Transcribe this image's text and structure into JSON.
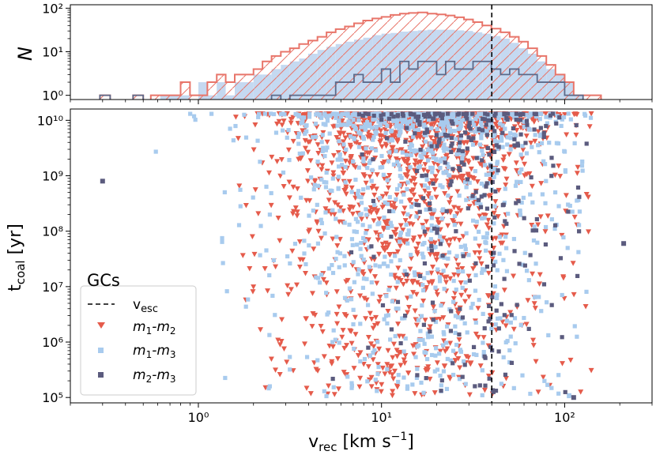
{
  "chart_data": [
    {
      "type": "histogram",
      "panel": "top",
      "ylabel": "N",
      "xscale": "log",
      "yscale": "log",
      "xlim": [
        0.2,
        300
      ],
      "ylim": [
        0.8,
        120
      ],
      "y_ticks": [
        {
          "value": 1,
          "label": "10⁰"
        },
        {
          "value": 10,
          "label": "10¹"
        },
        {
          "value": 100,
          "label": "10²"
        }
      ],
      "series": [
        {
          "name": "m1-m2",
          "style": "hatched outline",
          "color": "#e8756a",
          "bins": [
            [
              0.29,
              0.33,
              1
            ],
            [
              0.44,
              0.5,
              1
            ],
            [
              0.55,
              0.62,
              1
            ],
            [
              0.62,
              0.7,
              1
            ],
            [
              0.7,
              0.8,
              1
            ],
            [
              0.8,
              0.9,
              2
            ],
            [
              0.9,
              1.0,
              1
            ],
            [
              1.0,
              1.12,
              1
            ],
            [
              1.12,
              1.26,
              2
            ],
            [
              1.26,
              1.41,
              3
            ],
            [
              1.41,
              1.58,
              2
            ],
            [
              1.58,
              1.78,
              3
            ],
            [
              1.78,
              2.0,
              3
            ],
            [
              2.0,
              2.24,
              4
            ],
            [
              2.24,
              2.51,
              6
            ],
            [
              2.51,
              2.82,
              8
            ],
            [
              2.82,
              3.16,
              10
            ],
            [
              3.16,
              3.55,
              12
            ],
            [
              3.55,
              3.98,
              15
            ],
            [
              3.98,
              4.47,
              18
            ],
            [
              4.47,
              5.01,
              22
            ],
            [
              5.01,
              5.62,
              28
            ],
            [
              5.62,
              6.31,
              33
            ],
            [
              6.31,
              7.08,
              38
            ],
            [
              7.08,
              7.94,
              45
            ],
            [
              7.94,
              8.91,
              52
            ],
            [
              8.91,
              10.0,
              58
            ],
            [
              10.0,
              11.2,
              63
            ],
            [
              11.2,
              12.6,
              70
            ],
            [
              12.6,
              14.1,
              75
            ],
            [
              14.1,
              15.8,
              78
            ],
            [
              15.8,
              17.8,
              80
            ],
            [
              17.8,
              20.0,
              75
            ],
            [
              20.0,
              22.4,
              72
            ],
            [
              22.4,
              25.1,
              68
            ],
            [
              25.1,
              28.2,
              62
            ],
            [
              28.2,
              31.6,
              55
            ],
            [
              31.6,
              35.5,
              48
            ],
            [
              35.5,
              39.8,
              40
            ],
            [
              39.8,
              44.7,
              34
            ],
            [
              44.7,
              50.1,
              28
            ],
            [
              50.1,
              56.2,
              22
            ],
            [
              56.2,
              63.1,
              17
            ],
            [
              63.1,
              70.8,
              12
            ],
            [
              70.8,
              79.4,
              8
            ],
            [
              79.4,
              89.1,
              5
            ],
            [
              89.1,
              100,
              3
            ],
            [
              100,
              112,
              2
            ],
            [
              112,
              126,
              1
            ],
            [
              126,
              141,
              1
            ],
            [
              141,
              158,
              1
            ]
          ]
        },
        {
          "name": "m1-m3",
          "style": "filled",
          "color": "#c5d9f1",
          "bins": [
            [
              0.62,
              0.7,
              1
            ],
            [
              0.7,
              0.8,
              1
            ],
            [
              0.8,
              0.9,
              1
            ],
            [
              1.0,
              1.12,
              2
            ],
            [
              1.12,
              1.26,
              1
            ],
            [
              1.26,
              1.41,
              2
            ],
            [
              1.41,
              1.58,
              1
            ],
            [
              1.58,
              1.78,
              2
            ],
            [
              1.78,
              2.0,
              2
            ],
            [
              2.0,
              2.24,
              3
            ],
            [
              2.24,
              2.51,
              3
            ],
            [
              2.51,
              2.82,
              4
            ],
            [
              2.82,
              3.16,
              5
            ],
            [
              3.16,
              3.55,
              6
            ],
            [
              3.55,
              3.98,
              7
            ],
            [
              3.98,
              4.47,
              9
            ],
            [
              4.47,
              5.01,
              11
            ],
            [
              5.01,
              5.62,
              13
            ],
            [
              5.62,
              6.31,
              15
            ],
            [
              6.31,
              7.08,
              17
            ],
            [
              7.08,
              7.94,
              19
            ],
            [
              7.94,
              8.91,
              21
            ],
            [
              8.91,
              10.0,
              24
            ],
            [
              10.0,
              11.2,
              26
            ],
            [
              11.2,
              12.6,
              27
            ],
            [
              12.6,
              14.1,
              29
            ],
            [
              14.1,
              15.8,
              30
            ],
            [
              15.8,
              17.8,
              31
            ],
            [
              17.8,
              20.0,
              32
            ],
            [
              20.0,
              22.4,
              32
            ],
            [
              22.4,
              25.1,
              32
            ],
            [
              25.1,
              28.2,
              31
            ],
            [
              28.2,
              31.6,
              30
            ],
            [
              31.6,
              35.5,
              28
            ],
            [
              35.5,
              39.8,
              26
            ],
            [
              39.8,
              44.7,
              23
            ],
            [
              44.7,
              50.1,
              20
            ],
            [
              50.1,
              56.2,
              16
            ],
            [
              56.2,
              63.1,
              12
            ],
            [
              63.1,
              70.8,
              9
            ],
            [
              70.8,
              79.4,
              6
            ],
            [
              79.4,
              89.1,
              4
            ],
            [
              89.1,
              100,
              3
            ],
            [
              100,
              112,
              2
            ],
            [
              112,
              126,
              1
            ]
          ]
        },
        {
          "name": "m2-m3",
          "style": "outline",
          "color": "#5c6a8a",
          "bins": [
            [
              0.29,
              0.33,
              1
            ],
            [
              0.44,
              0.5,
              1
            ],
            [
              2.51,
              2.82,
              1
            ],
            [
              3.16,
              3.55,
              1
            ],
            [
              3.55,
              3.98,
              1
            ],
            [
              3.98,
              4.47,
              1
            ],
            [
              4.47,
              5.01,
              1
            ],
            [
              5.01,
              5.62,
              1
            ],
            [
              5.62,
              6.31,
              2
            ],
            [
              6.31,
              7.08,
              2
            ],
            [
              7.08,
              7.94,
              3
            ],
            [
              7.94,
              8.91,
              2
            ],
            [
              8.91,
              10.0,
              2
            ],
            [
              10.0,
              11.2,
              4
            ],
            [
              11.2,
              12.6,
              2
            ],
            [
              12.6,
              14.1,
              6
            ],
            [
              14.1,
              15.8,
              4
            ],
            [
              15.8,
              17.8,
              6
            ],
            [
              17.8,
              20.0,
              6
            ],
            [
              20.0,
              22.4,
              3
            ],
            [
              22.4,
              25.1,
              6
            ],
            [
              25.1,
              28.2,
              4
            ],
            [
              28.2,
              31.6,
              4
            ],
            [
              31.6,
              35.5,
              6
            ],
            [
              35.5,
              39.8,
              6
            ],
            [
              39.8,
              44.7,
              4
            ],
            [
              44.7,
              50.1,
              3
            ],
            [
              50.1,
              56.2,
              4
            ],
            [
              56.2,
              63.1,
              3
            ],
            [
              63.1,
              70.8,
              3
            ],
            [
              70.8,
              79.4,
              2
            ],
            [
              79.4,
              89.1,
              2
            ],
            [
              89.1,
              100,
              2
            ],
            [
              100,
              112,
              1
            ],
            [
              112,
              126,
              1
            ]
          ]
        }
      ],
      "v_esc_line": 40
    },
    {
      "type": "scatter",
      "panel": "bottom",
      "xlabel": "v_rec [km s⁻¹]",
      "ylabel": "t_coal [yr]",
      "xscale": "log",
      "yscale": "log",
      "xlim": [
        0.2,
        300
      ],
      "ylim": [
        80000,
        16000000000
      ],
      "x_ticks": [
        {
          "value": 1,
          "label": "10⁰"
        },
        {
          "value": 10,
          "label": "10¹"
        },
        {
          "value": 100,
          "label": "10²"
        }
      ],
      "y_ticks": [
        {
          "value": 100000,
          "label": "10⁵"
        },
        {
          "value": 1000000,
          "label": "10⁶"
        },
        {
          "value": 10000000,
          "label": "10⁷"
        },
        {
          "value": 100000000,
          "label": "10⁸"
        },
        {
          "value": 1000000000,
          "label": "10⁹"
        },
        {
          "value": 10000000000,
          "label": "10¹⁰"
        }
      ],
      "v_esc": 40,
      "series": [
        {
          "name": "m1-m2",
          "marker": "triangle-down",
          "color": "#e55b4b",
          "n_points": 1500,
          "seed": 11,
          "mu": 1.18,
          "sigma": 0.38
        },
        {
          "name": "m1-m3",
          "marker": "square",
          "color": "#a8cbee",
          "n_points": 1100,
          "seed": 23,
          "mu": 1.2,
          "sigma": 0.42
        },
        {
          "name": "m2-m3",
          "marker": "square",
          "color": "#5b5b7e",
          "n_points": 280,
          "seed": 37,
          "mu": 1.45,
          "sigma": 0.3
        }
      ],
      "outliers": [
        {
          "series": "m2-m3",
          "x": 0.3,
          "y": 800000000
        },
        {
          "series": "m2-m3",
          "x": 210,
          "y": 60000000
        },
        {
          "series": "m2-m3",
          "x": 112,
          "y": 100000
        }
      ],
      "legend": {
        "title": "GCs",
        "position": "lower-left",
        "entries": [
          "v_esc",
          "m₁-m₂",
          "m₁-m₃",
          "m₂-m₃"
        ]
      }
    }
  ],
  "labels": {
    "top_ylabel": "N",
    "xlabel_main": "v",
    "xlabel_sub": "rec",
    "xlabel_units": " [km s",
    "xlabel_exp": "−1",
    "xlabel_close": "]",
    "ylabel_main": "t",
    "ylabel_sub": "coal",
    "ylabel_units": " [yr]",
    "legend_title": "GCs",
    "legend_vesc_main": "v",
    "legend_vesc_sub": "esc",
    "legend_m12_a": "m",
    "legend_m12_b": "1",
    "legend_m12_c": "-m",
    "legend_m12_d": "2",
    "legend_m13_a": "m",
    "legend_m13_b": "1",
    "legend_m13_c": "-m",
    "legend_m13_d": "3",
    "legend_m23_a": "m",
    "legend_m23_b": "2",
    "legend_m23_c": "-m",
    "legend_m23_d": "3"
  },
  "colors": {
    "m1m2_hist": "#e8756a",
    "m1m3_hist": "#c5d9f1",
    "m2m3_hist": "#5c6a8a",
    "m1m2_scatter": "#e55b4b",
    "m1m3_scatter": "#a8cbee",
    "m2m3_scatter": "#5b5b7e"
  }
}
